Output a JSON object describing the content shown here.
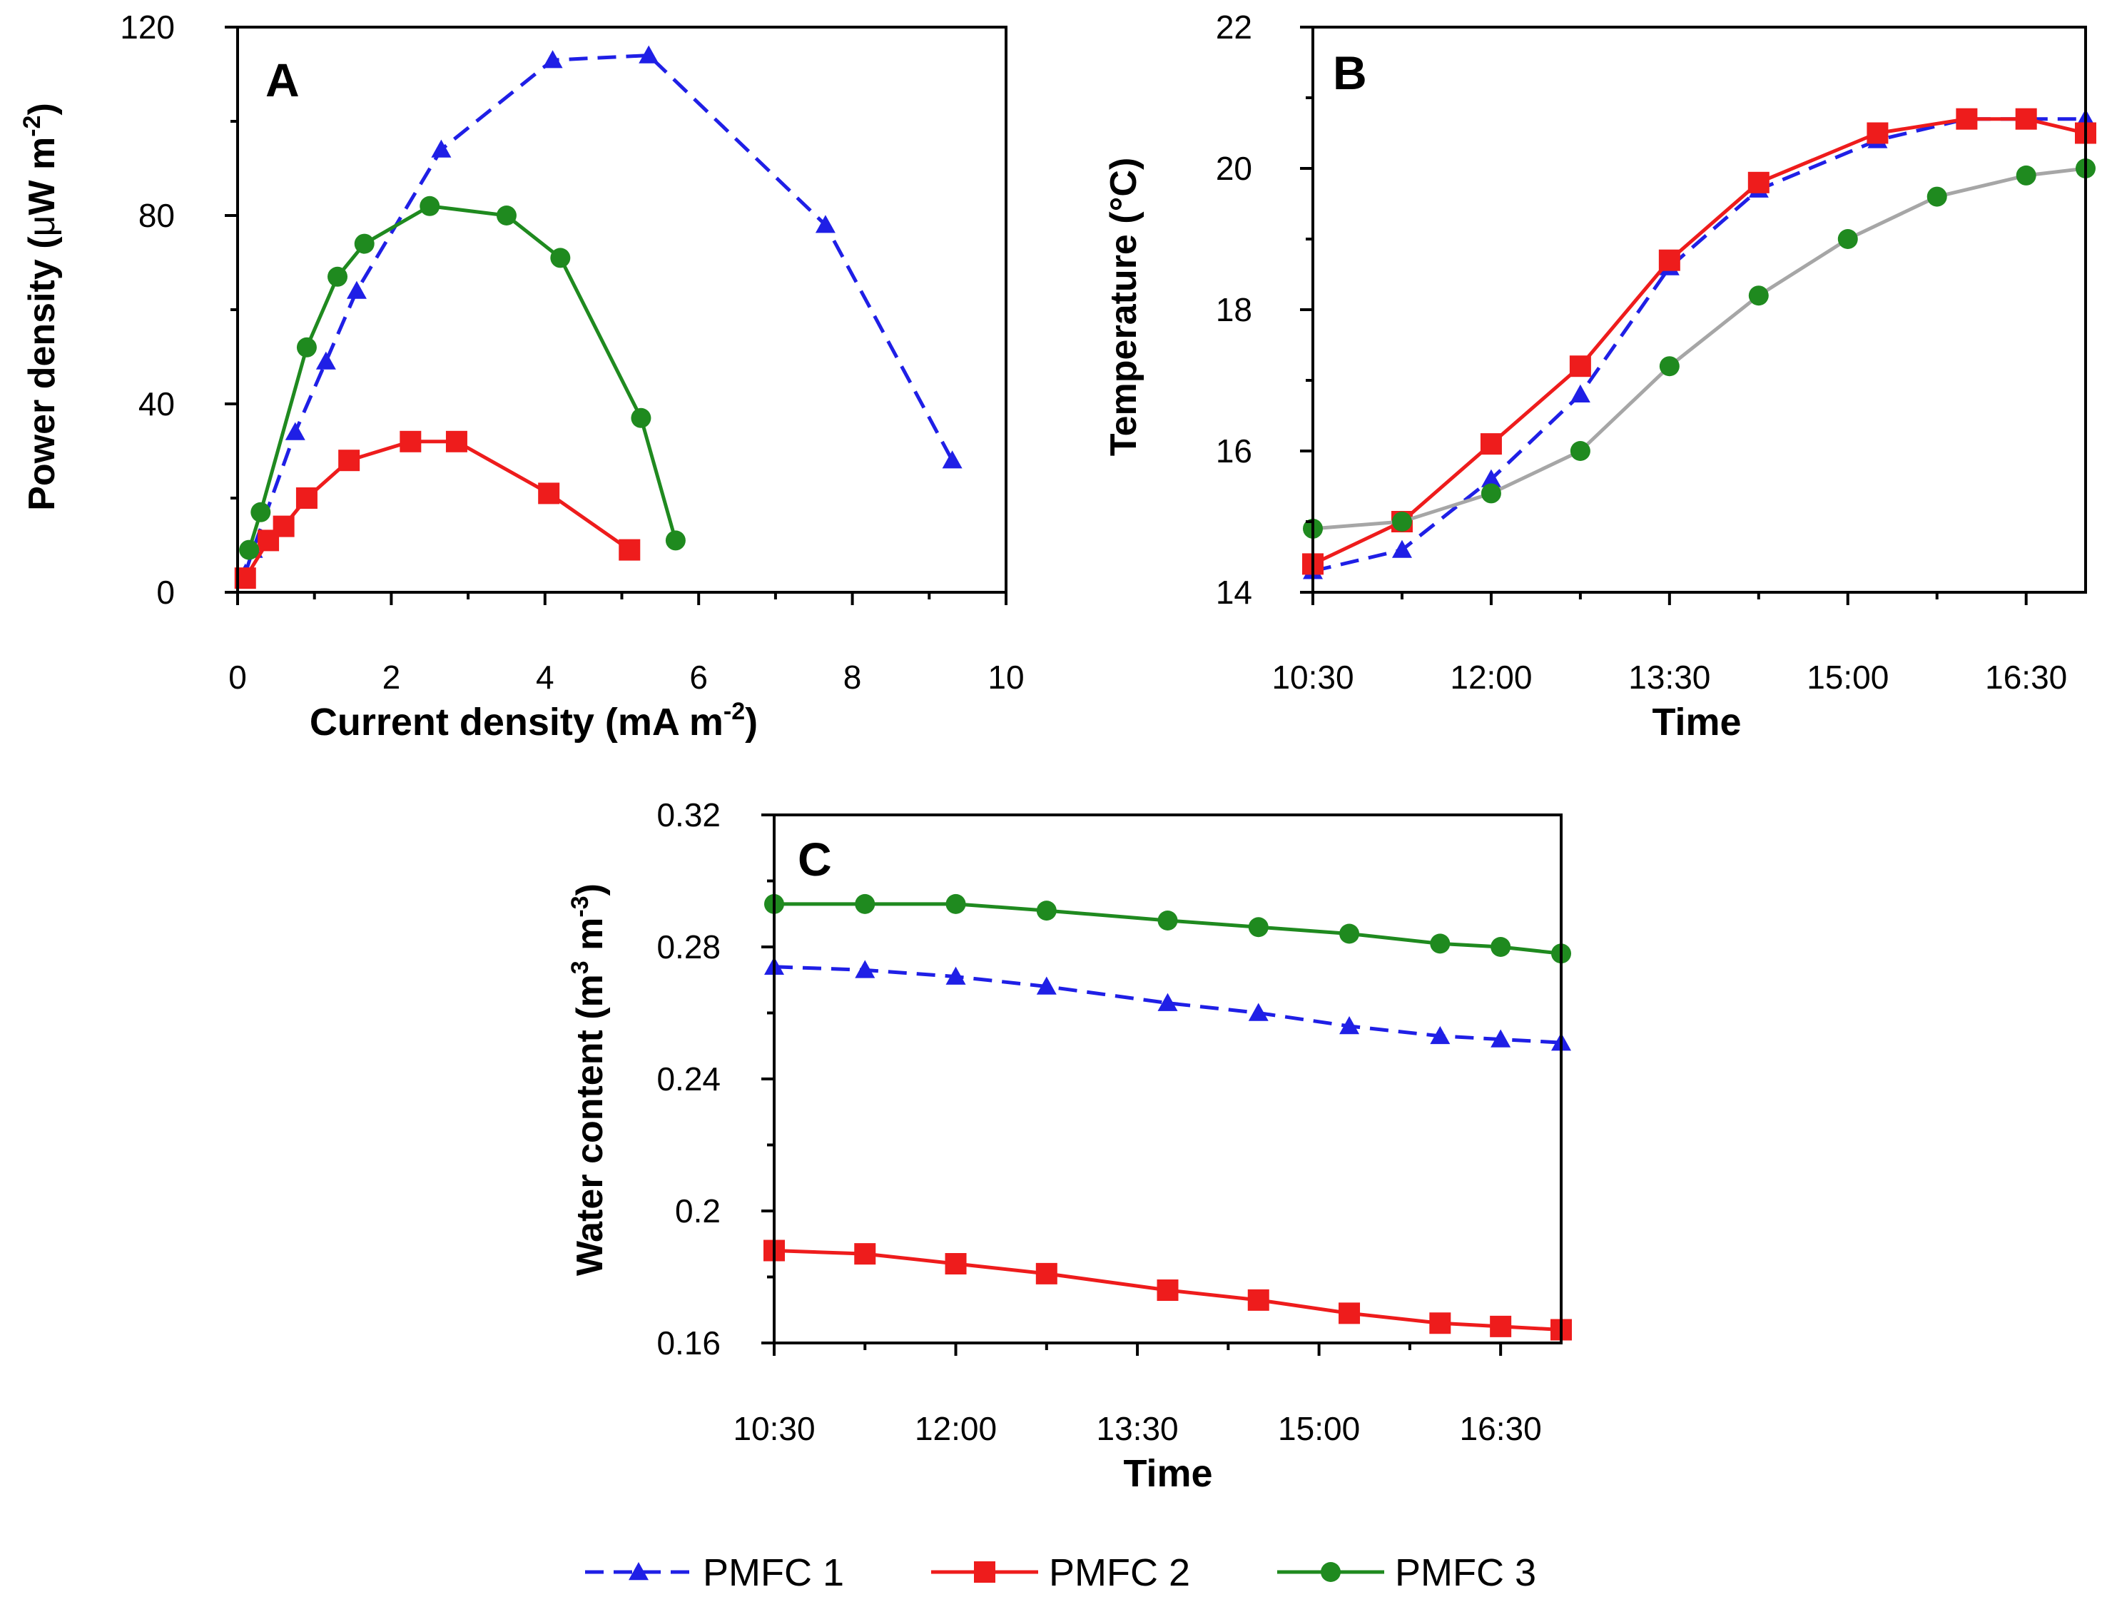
{
  "colors": {
    "pmfc1": "#1f1fe6",
    "pmfc2": "#ee1c1c",
    "pmfc3": "#1f8a1f",
    "pmfc3_line_b": "#a6a6a6"
  },
  "legend": [
    {
      "key": "pmfc1",
      "label": "PMFC 1",
      "marker": "triangle",
      "dash": true
    },
    {
      "key": "pmfc2",
      "label": "PMFC 2",
      "marker": "square",
      "dash": false
    },
    {
      "key": "pmfc3",
      "label": "PMFC 3",
      "marker": "circle",
      "dash": false
    }
  ],
  "chart_data": [
    {
      "id": "A",
      "type": "line",
      "panel_label": "A",
      "xlabel": "Current density (mA m",
      "xlabel_sup": "-2",
      "xlabel_end": ")",
      "ylabel_pre": "Power density (",
      "ylabel_mu": "μ",
      "ylabel_mid": "W m",
      "ylabel_sup": "-2",
      "ylabel_end": ")",
      "xlim": [
        0,
        10
      ],
      "ylim": [
        0,
        120
      ],
      "xticks": [
        0,
        2,
        4,
        6,
        8,
        10
      ],
      "xtick_labels": [
        "0",
        "2",
        "4",
        "6",
        "8",
        "10"
      ],
      "yticks": [
        0,
        40,
        80,
        120
      ],
      "ytick_labels": [
        "0",
        "40",
        "80",
        "120"
      ],
      "grid": false,
      "series": [
        {
          "name": "PMFC 1",
          "key": "pmfc1",
          "x": [
            0.1,
            0.2,
            0.75,
            1.15,
            1.55,
            2.65,
            4.1,
            5.35,
            7.65,
            9.3
          ],
          "y": [
            4,
            9,
            34,
            49,
            64,
            94,
            113,
            114,
            78,
            28
          ]
        },
        {
          "name": "PMFC 2",
          "key": "pmfc2",
          "x": [
            0.1,
            0.4,
            0.6,
            0.9,
            1.45,
            2.25,
            2.85,
            4.05,
            5.1
          ],
          "y": [
            3,
            11,
            14,
            20,
            28,
            32,
            32,
            21,
            9
          ]
        },
        {
          "name": "PMFC 3",
          "key": "pmfc3",
          "x": [
            0.15,
            0.3,
            0.9,
            1.3,
            1.65,
            2.5,
            3.5,
            4.2,
            5.25,
            5.7
          ],
          "y": [
            9,
            17,
            52,
            67,
            74,
            82,
            80,
            71,
            37,
            11
          ]
        }
      ]
    },
    {
      "id": "B",
      "type": "line",
      "panel_label": "B",
      "xlabel": "Time",
      "ylabel": "Temperature (°C)",
      "xlim": [
        10.5,
        17.0
      ],
      "ylim": [
        14,
        22
      ],
      "xticks": [
        10.5,
        12.0,
        13.5,
        15.0,
        16.5
      ],
      "xtick_labels": [
        "10:30",
        "12:00",
        "13:30",
        "15:00",
        "16:30"
      ],
      "yticks": [
        14,
        16,
        18,
        20,
        22
      ],
      "ytick_labels": [
        "14",
        "16",
        "18",
        "20",
        "22"
      ],
      "grid": false,
      "series": [
        {
          "name": "PMFC 1",
          "key": "pmfc1",
          "x": [
            10.5,
            11.25,
            12.0,
            12.75,
            13.5,
            14.25,
            15.25,
            16.0,
            16.5,
            17.0
          ],
          "y": [
            14.3,
            14.6,
            15.6,
            16.8,
            18.6,
            19.7,
            20.4,
            20.7,
            20.7,
            20.7
          ]
        },
        {
          "name": "PMFC 2",
          "key": "pmfc2",
          "x": [
            10.5,
            11.25,
            12.0,
            12.75,
            13.5,
            14.25,
            15.25,
            16.0,
            16.5,
            17.0
          ],
          "y": [
            14.4,
            15.0,
            16.1,
            17.2,
            18.7,
            19.8,
            20.5,
            20.7,
            20.7,
            20.5
          ]
        },
        {
          "name": "PMFC 3",
          "key": "pmfc3",
          "line_key": "pmfc3_line_b",
          "x": [
            10.5,
            11.25,
            12.0,
            12.75,
            13.5,
            14.25,
            15.0,
            15.75,
            16.5,
            17.0
          ],
          "y": [
            14.9,
            15.0,
            15.4,
            16.0,
            17.2,
            18.2,
            19.0,
            19.6,
            19.9,
            20.0
          ]
        }
      ]
    },
    {
      "id": "C",
      "type": "line",
      "panel_label": "C",
      "xlabel": "Time",
      "ylabel_pre": "Water content (m",
      "ylabel_sup1": "3",
      "ylabel_mid": " m",
      "ylabel_sup2": "-3",
      "ylabel_end": ")",
      "xlim": [
        10.5,
        17.0
      ],
      "ylim": [
        0.16,
        0.32
      ],
      "xticks": [
        10.5,
        12.0,
        13.5,
        15.0,
        16.5
      ],
      "xtick_labels": [
        "10:30",
        "12:00",
        "13:30",
        "15:00",
        "16:30"
      ],
      "yticks": [
        0.16,
        0.2,
        0.24,
        0.28,
        0.32
      ],
      "ytick_labels": [
        "0.16",
        "0.2",
        "0.24",
        "0.28",
        "0.32"
      ],
      "grid": false,
      "series": [
        {
          "name": "PMFC 1",
          "key": "pmfc1",
          "x": [
            10.5,
            11.25,
            12.0,
            12.75,
            13.75,
            14.5,
            15.25,
            16.0,
            16.5,
            17.0
          ],
          "y": [
            0.274,
            0.273,
            0.271,
            0.268,
            0.263,
            0.26,
            0.256,
            0.253,
            0.252,
            0.251
          ]
        },
        {
          "name": "PMFC 2",
          "key": "pmfc2",
          "x": [
            10.5,
            11.25,
            12.0,
            12.75,
            13.75,
            14.5,
            15.25,
            16.0,
            16.5,
            17.0
          ],
          "y": [
            0.188,
            0.187,
            0.184,
            0.181,
            0.176,
            0.173,
            0.169,
            0.166,
            0.165,
            0.164
          ]
        },
        {
          "name": "PMFC 3",
          "key": "pmfc3",
          "x": [
            10.5,
            11.25,
            12.0,
            12.75,
            13.75,
            14.5,
            15.25,
            16.0,
            16.5,
            17.0
          ],
          "y": [
            0.293,
            0.293,
            0.293,
            0.291,
            0.288,
            0.286,
            0.284,
            0.281,
            0.28,
            0.278
          ]
        }
      ]
    }
  ]
}
